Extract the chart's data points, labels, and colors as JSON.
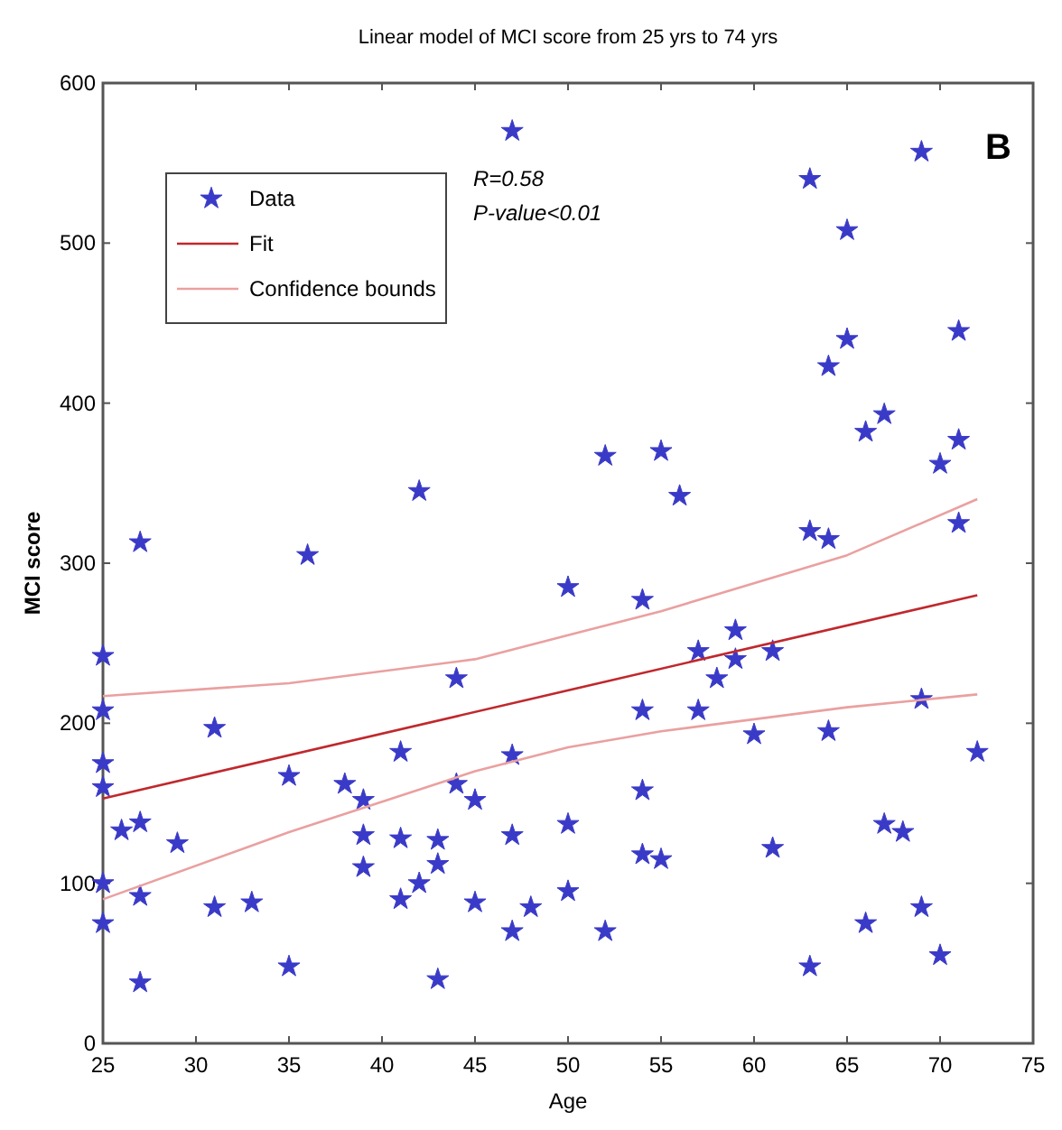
{
  "chart_data": {
    "type": "scatter",
    "title": "Linear model of MCI score from  25 yrs to 74 yrs",
    "xlabel": "Age",
    "ylabel": "MCI score",
    "xlim": [
      25,
      75
    ],
    "xticks": [
      25,
      30,
      35,
      40,
      45,
      50,
      55,
      60,
      65,
      70,
      75
    ],
    "ylim": [
      0,
      600
    ],
    "yticks": [
      0,
      100,
      200,
      300,
      400,
      500,
      600
    ],
    "grid": false,
    "legend": "top left",
    "marker": "star",
    "annotations": [
      "R=0.58",
      "P-value<0.01",
      "B"
    ],
    "series": [
      {
        "name": "Data",
        "color": "#3a3ac8",
        "x": [
          25,
          25,
          25,
          25,
          25,
          25,
          26,
          27,
          27,
          27,
          27,
          29,
          31,
          31,
          33,
          35,
          35,
          36,
          38,
          39,
          39,
          39,
          41,
          41,
          41,
          42,
          42,
          43,
          43,
          43,
          44,
          44,
          45,
          45,
          47,
          47,
          47,
          47,
          48,
          50,
          50,
          50,
          52,
          52,
          54,
          54,
          54,
          54,
          55,
          55,
          56,
          57,
          57,
          58,
          59,
          59,
          60,
          61,
          61,
          63,
          63,
          63,
          64,
          64,
          64,
          65,
          65,
          66,
          66,
          67,
          67,
          68,
          69,
          69,
          69,
          70,
          70,
          71,
          71,
          71,
          72
        ],
        "values": [
          242,
          208,
          175,
          160,
          100,
          75,
          133,
          313,
          138,
          92,
          38,
          125,
          197,
          85,
          88,
          167,
          48,
          305,
          162,
          152,
          130,
          110,
          182,
          128,
          90,
          345,
          100,
          127,
          112,
          40,
          228,
          162,
          152,
          88,
          570,
          180,
          130,
          70,
          85,
          285,
          137,
          95,
          367,
          70,
          277,
          208,
          158,
          118,
          370,
          115,
          342,
          245,
          208,
          228,
          258,
          240,
          193,
          245,
          122,
          540,
          320,
          48,
          423,
          315,
          195,
          508,
          440,
          382,
          75,
          393,
          137,
          132,
          557,
          215,
          85,
          362,
          55,
          445,
          377,
          325,
          182
        ]
      },
      {
        "name": "Fit",
        "type": "line",
        "color": "#c0282d",
        "marker": "none",
        "x": [
          25,
          72
        ],
        "values": [
          153,
          280
        ]
      },
      {
        "name": "Confidence bounds",
        "type": "line",
        "color": "#eaa0a0",
        "marker": "none",
        "x": [
          25,
          35,
          45,
          50,
          55,
          65,
          72
        ],
        "values": [
          217,
          225,
          240,
          255,
          270,
          305,
          340
        ]
      },
      {
        "type": "line",
        "color": "#eaa0a0",
        "marker": "none",
        "x": [
          25,
          35,
          45,
          50,
          55,
          65,
          72
        ],
        "values": [
          90,
          132,
          170,
          185,
          195,
          210,
          218
        ]
      }
    ]
  }
}
